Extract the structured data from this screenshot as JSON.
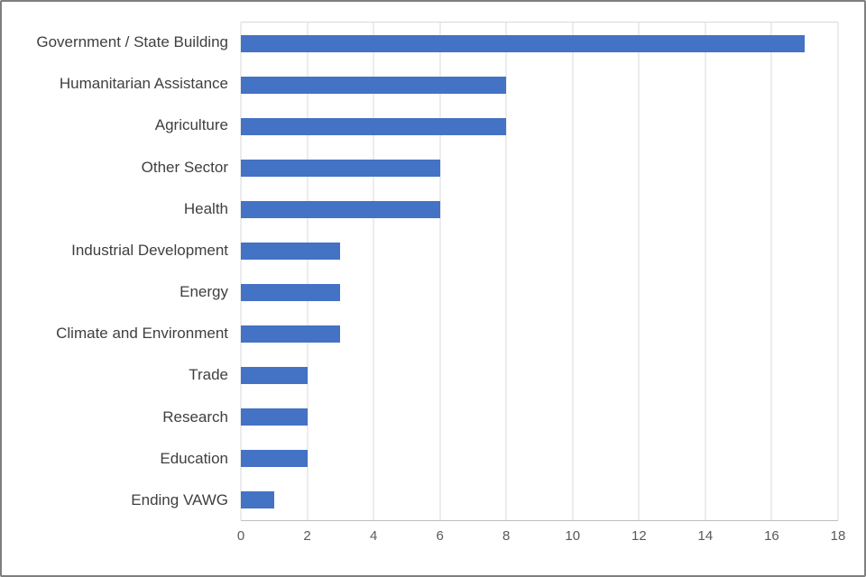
{
  "chart_data": {
    "type": "bar",
    "orientation": "horizontal",
    "title": "",
    "categories": [
      "Government / State Building",
      "Humanitarian Assistance",
      "Agriculture",
      "Other Sector",
      "Health",
      "Industrial Development",
      "Energy",
      "Climate and Environment",
      "Trade",
      "Research",
      "Education",
      "Ending VAWG"
    ],
    "values": [
      17,
      8,
      8,
      6,
      6,
      3,
      3,
      3,
      2,
      2,
      2,
      1
    ],
    "xlabel": "",
    "ylabel": "",
    "xlim": [
      0,
      18
    ],
    "xticks": [
      0,
      2,
      4,
      6,
      8,
      10,
      12,
      14,
      16,
      18
    ],
    "grid": "vertical",
    "legend": "none",
    "bar_color": "#4472c4",
    "gridline_color": "#d9d9d9",
    "axis_line_color": "#bfbfbf",
    "label_color": "#3f3f3f",
    "tick_label_color": "#595959",
    "frame_border_color": "#7f7f7f"
  }
}
